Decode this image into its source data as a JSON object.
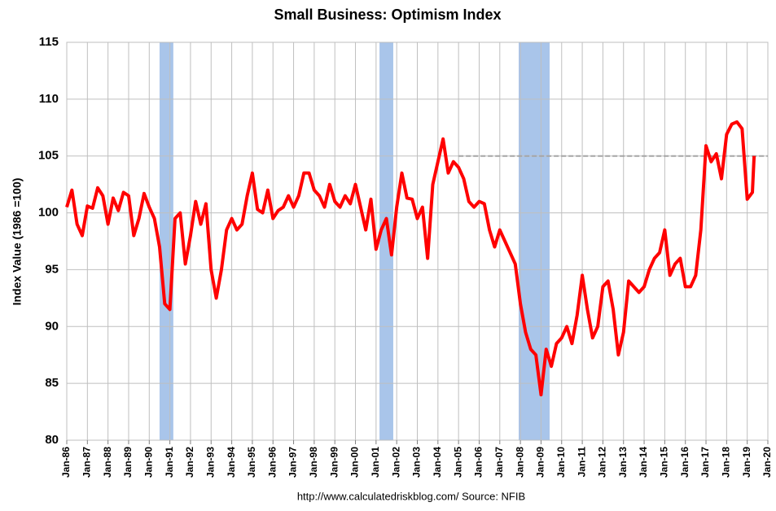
{
  "chart_data": {
    "type": "line",
    "title": "Small Business: Optimism Index",
    "y_label": "Index Value (1986 =100)",
    "source": "http://www.calculatedriskblog.com/  Source: NFIB",
    "color": "#ff0000",
    "grid": true,
    "shade_color": "#a9c5ea",
    "shaded_periods": [
      [
        "1990-07",
        "1991-03"
      ],
      [
        "2001-03",
        "2001-11"
      ],
      [
        "2007-12",
        "2009-06"
      ]
    ],
    "reference_line": {
      "value": 105,
      "from": "2005-01",
      "color": "#a6a6a6"
    },
    "x": [
      "1986-01",
      "1986-04",
      "1986-07",
      "1986-10",
      "1987-01",
      "1987-04",
      "1987-07",
      "1987-10",
      "1988-01",
      "1988-04",
      "1988-07",
      "1988-10",
      "1989-01",
      "1989-04",
      "1989-07",
      "1989-10",
      "1990-01",
      "1990-04",
      "1990-07",
      "1990-10",
      "1991-01",
      "1991-04",
      "1991-07",
      "1991-10",
      "1992-01",
      "1992-04",
      "1992-07",
      "1992-10",
      "1993-01",
      "1993-04",
      "1993-07",
      "1993-10",
      "1994-01",
      "1994-04",
      "1994-07",
      "1994-10",
      "1995-01",
      "1995-04",
      "1995-07",
      "1995-10",
      "1996-01",
      "1996-04",
      "1996-07",
      "1996-10",
      "1997-01",
      "1997-04",
      "1997-07",
      "1997-10",
      "1998-01",
      "1998-04",
      "1998-07",
      "1998-10",
      "1999-01",
      "1999-04",
      "1999-07",
      "1999-10",
      "2000-01",
      "2000-04",
      "2000-07",
      "2000-10",
      "2001-01",
      "2001-04",
      "2001-07",
      "2001-10",
      "2002-01",
      "2002-04",
      "2002-07",
      "2002-10",
      "2003-01",
      "2003-04",
      "2003-07",
      "2003-10",
      "2004-01",
      "2004-04",
      "2004-07",
      "2004-10",
      "2005-01",
      "2005-04",
      "2005-07",
      "2005-10",
      "2006-01",
      "2006-04",
      "2006-07",
      "2006-10",
      "2007-01",
      "2007-04",
      "2007-07",
      "2007-10",
      "2008-01",
      "2008-04",
      "2008-07",
      "2008-10",
      "2009-01",
      "2009-04",
      "2009-07",
      "2009-10",
      "2010-01",
      "2010-04",
      "2010-07",
      "2010-10",
      "2011-01",
      "2011-04",
      "2011-07",
      "2011-10",
      "2012-01",
      "2012-04",
      "2012-07",
      "2012-10",
      "2013-01",
      "2013-04",
      "2013-07",
      "2013-10",
      "2014-01",
      "2014-04",
      "2014-07",
      "2014-10",
      "2015-01",
      "2015-04",
      "2015-07",
      "2015-10",
      "2016-01",
      "2016-04",
      "2016-07",
      "2016-10",
      "2017-01",
      "2017-04",
      "2017-07",
      "2017-10",
      "2018-01",
      "2018-04",
      "2018-07",
      "2018-10",
      "2019-01",
      "2019-04",
      "2019-05"
    ],
    "values": [
      100.5,
      102,
      99,
      98,
      100.6,
      100.4,
      102.2,
      101.5,
      99,
      101.3,
      100.2,
      101.8,
      101.5,
      98,
      99.5,
      101.7,
      100.5,
      99.5,
      97,
      92,
      91.5,
      99.5,
      100,
      95.5,
      98,
      101,
      99,
      100.8,
      95,
      92.5,
      95,
      98.5,
      99.5,
      98.5,
      99,
      101.5,
      103.5,
      100.3,
      100,
      102,
      99.5,
      100.2,
      100.5,
      101.5,
      100.5,
      101.5,
      103.5,
      103.5,
      102,
      101.5,
      100.5,
      102.5,
      101,
      100.5,
      101.5,
      100.8,
      102.5,
      100.5,
      98.5,
      101.2,
      96.8,
      98.5,
      99.5,
      96.3,
      100.5,
      103.5,
      101.3,
      101.2,
      99.5,
      100.5,
      96,
      102.5,
      104.5,
      106.5,
      103.5,
      104.5,
      104,
      103,
      101,
      100.5,
      101,
      100.8,
      98.5,
      97,
      98.5,
      97.5,
      96.5,
      95.5,
      92,
      89.5,
      88,
      87.5,
      84,
      88,
      86.5,
      88.5,
      89,
      90,
      88.5,
      91,
      94.5,
      91.5,
      89,
      90,
      93.5,
      94,
      91.5,
      87.5,
      89.5,
      94,
      93.5,
      93,
      93.5,
      95,
      96,
      96.5,
      98.5,
      94.5,
      95.5,
      96,
      93.5,
      93.5,
      94.5,
      98.5,
      105.9,
      104.5,
      105.2,
      103,
      106.9,
      107.8,
      108,
      107.4,
      101.2,
      101.8,
      105
    ],
    "ylim": [
      80,
      115
    ],
    "yticks": [
      80,
      85,
      90,
      95,
      100,
      105,
      110,
      115
    ],
    "xlim": [
      "1986-01",
      "2020-01"
    ],
    "xticks": [
      {
        "value": "1986-01",
        "label": "Jan-86"
      },
      {
        "value": "1987-01",
        "label": "Jan-87"
      },
      {
        "value": "1988-01",
        "label": "Jan-88"
      },
      {
        "value": "1989-01",
        "label": "Jan-89"
      },
      {
        "value": "1990-01",
        "label": "Jan-90"
      },
      {
        "value": "1991-01",
        "label": "Jan-91"
      },
      {
        "value": "1992-01",
        "label": "Jan-92"
      },
      {
        "value": "1993-01",
        "label": "Jan-93"
      },
      {
        "value": "1994-01",
        "label": "Jan-94"
      },
      {
        "value": "1995-01",
        "label": "Jan-95"
      },
      {
        "value": "1996-01",
        "label": "Jan-96"
      },
      {
        "value": "1997-01",
        "label": "Jan-97"
      },
      {
        "value": "1998-01",
        "label": "Jan-98"
      },
      {
        "value": "1999-01",
        "label": "Jan-99"
      },
      {
        "value": "2000-01",
        "label": "Jan-00"
      },
      {
        "value": "2001-01",
        "label": "Jan-01"
      },
      {
        "value": "2002-01",
        "label": "Jan-02"
      },
      {
        "value": "2003-01",
        "label": "Jan-03"
      },
      {
        "value": "2004-01",
        "label": "Jan-04"
      },
      {
        "value": "2005-01",
        "label": "Jan-05"
      },
      {
        "value": "2006-01",
        "label": "Jan-06"
      },
      {
        "value": "2007-01",
        "label": "Jan-07"
      },
      {
        "value": "2008-01",
        "label": "Jan-08"
      },
      {
        "value": "2009-01",
        "label": "Jan-09"
      },
      {
        "value": "2010-01",
        "label": "Jan-10"
      },
      {
        "value": "2011-01",
        "label": "Jan-11"
      },
      {
        "value": "2012-01",
        "label": "Jan-12"
      },
      {
        "value": "2013-01",
        "label": "Jan-13"
      },
      {
        "value": "2014-01",
        "label": "Jan-14"
      },
      {
        "value": "2015-01",
        "label": "Jan-15"
      },
      {
        "value": "2016-01",
        "label": "Jan-16"
      },
      {
        "value": "2017-01",
        "label": "Jan-17"
      },
      {
        "value": "2018-01",
        "label": "Jan-18"
      },
      {
        "value": "2019-01",
        "label": "Jan-19"
      },
      {
        "value": "2020-01",
        "label": "Jan-20"
      }
    ]
  }
}
